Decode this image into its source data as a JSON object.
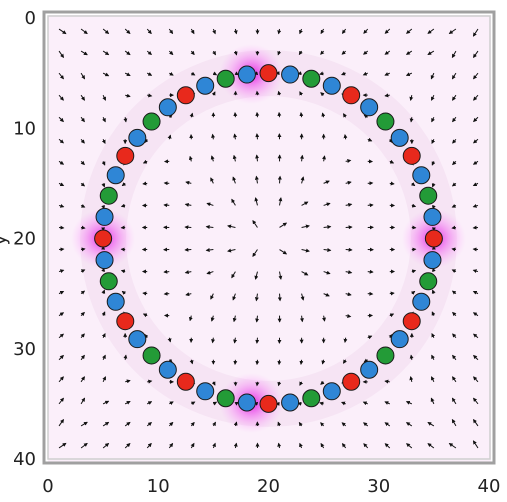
{
  "chart_data": {
    "type": "scatter",
    "title": "",
    "xlabel": "",
    "ylabel": "",
    "xlim": [
      0,
      40
    ],
    "ylim": [
      0,
      40
    ],
    "y_inverted": true,
    "x_ticks": [
      "0",
      "10",
      "20",
      "30",
      "40"
    ],
    "y_ticks": [
      "0",
      "10",
      "20",
      "30",
      "40"
    ],
    "ylabel_fragment": "y",
    "grid": false,
    "legend": "none",
    "colors": {
      "red": "#e8291c",
      "green": "#239b37",
      "blue": "#2f86d6",
      "magenta_glow": "#e000e0",
      "field_tint": "#f6e4f4",
      "arrow": "#111111",
      "frame": "#999999"
    },
    "ring": {
      "center": [
        20,
        20
      ],
      "radius": 15,
      "bead_count": 48,
      "bead_color_sequence": [
        "red",
        "blue",
        "green",
        "blue"
      ],
      "hotspots_deg": [
        -96,
        0,
        96,
        180
      ]
    },
    "vector_field": {
      "grid_spacing": 2,
      "description_values": "arrows point toward the ring, converge at four magenta hotspots"
    }
  }
}
